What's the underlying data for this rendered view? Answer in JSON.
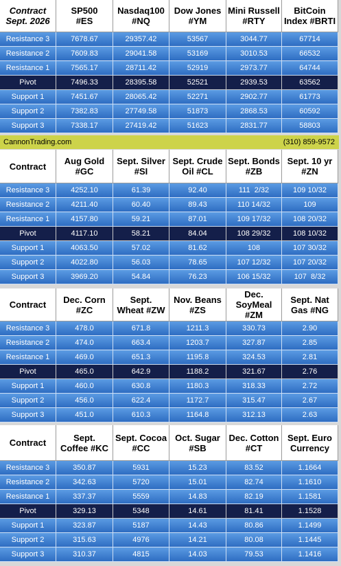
{
  "tables": [
    {
      "header": [
        [
          "Contract",
          "Sept. 2026"
        ],
        [
          "SP500",
          "#ES"
        ],
        [
          "Nasdaq100",
          "#NQ"
        ],
        [
          "Dow Jones",
          "#YM"
        ],
        [
          "Mini Russell",
          "#RTY"
        ],
        [
          "BitCoin",
          "Index #BRTI"
        ]
      ],
      "rows": [
        [
          "Resistance 3",
          "7678.67",
          "29357.42",
          "53567",
          "3044.77",
          "67714"
        ],
        [
          "Resistance 2",
          "7609.83",
          "29041.58",
          "53169",
          "3010.53",
          "66532"
        ],
        [
          "Resistance 1",
          "7565.17",
          "28711.42",
          "52919",
          "2973.77",
          "64744"
        ],
        [
          "Pivot",
          "7496.33",
          "28395.58",
          "52521",
          "2939.53",
          "63562"
        ],
        [
          "Support 1",
          "7451.67",
          "28065.42",
          "52271",
          "2902.77",
          "61773"
        ],
        [
          "Support 2",
          "7382.83",
          "27749.58",
          "51873",
          "2868.53",
          "60592"
        ],
        [
          "Support 3",
          "7338.17",
          "27419.42",
          "51623",
          "2831.77",
          "58803"
        ]
      ]
    },
    {
      "header": [
        [
          "Contract"
        ],
        [
          "Aug Gold",
          "#GC"
        ],
        [
          "Sept. Silver",
          "#SI"
        ],
        [
          "Sept. Crude",
          "Oil #CL"
        ],
        [
          "Sept. Bonds",
          "#ZB"
        ],
        [
          "Sept. 10 yr",
          "#ZN"
        ]
      ],
      "rows": [
        [
          "Resistance 3",
          "4252.10",
          "61.39",
          "92.40",
          "111  2/32",
          "109 10/32"
        ],
        [
          "Resistance 2",
          "4211.40",
          "60.40",
          "89.43",
          "110 14/32",
          "109"
        ],
        [
          "Resistance 1",
          "4157.80",
          "59.21",
          "87.01",
          "109 17/32",
          "108 20/32"
        ],
        [
          "Pivot",
          "4117.10",
          "58.21",
          "84.04",
          "108 29/32",
          "108 10/32"
        ],
        [
          "Support 1",
          "4063.50",
          "57.02",
          "81.62",
          "108",
          "107 30/32"
        ],
        [
          "Support 2",
          "4022.80",
          "56.03",
          "78.65",
          "107 12/32",
          "107 20/32"
        ],
        [
          "Support 3",
          "3969.20",
          "54.84",
          "76.23",
          "106 15/32",
          "107  8/32"
        ]
      ]
    },
    {
      "header": [
        [
          "Contract"
        ],
        [
          "Dec. Corn",
          "#ZC"
        ],
        [
          "Sept.",
          "Wheat #ZW"
        ],
        [
          "Nov. Beans",
          "#ZS"
        ],
        [
          "Dec.",
          "SoyMeal",
          "#ZM"
        ],
        [
          "Sept. Nat",
          "Gas #NG"
        ]
      ],
      "rows": [
        [
          "Resistance 3",
          "478.0",
          "671.8",
          "1211.3",
          "330.73",
          "2.90"
        ],
        [
          "Resistance 2",
          "474.0",
          "663.4",
          "1203.7",
          "327.87",
          "2.85"
        ],
        [
          "Resistance 1",
          "469.0",
          "651.3",
          "1195.8",
          "324.53",
          "2.81"
        ],
        [
          "Pivot",
          "465.0",
          "642.9",
          "1188.2",
          "321.67",
          "2.76"
        ],
        [
          "Support 1",
          "460.0",
          "630.8",
          "1180.3",
          "318.33",
          "2.72"
        ],
        [
          "Support 2",
          "456.0",
          "622.4",
          "1172.7",
          "315.47",
          "2.67"
        ],
        [
          "Support 3",
          "451.0",
          "610.3",
          "1164.8",
          "312.13",
          "2.63"
        ]
      ]
    },
    {
      "header": [
        [
          "Contract"
        ],
        [
          "Sept.",
          "Coffee #KC"
        ],
        [
          "Sept. Cocoa",
          "#CC"
        ],
        [
          "Oct. Sugar",
          "#SB"
        ],
        [
          "Dec. Cotton",
          "#CT"
        ],
        [
          "Sept. Euro",
          "Currency"
        ]
      ],
      "rows": [
        [
          "Resistance 3",
          "350.87",
          "5931",
          "15.23",
          "83.52",
          "1.1664"
        ],
        [
          "Resistance 2",
          "342.63",
          "5720",
          "15.01",
          "82.74",
          "1.1610"
        ],
        [
          "Resistance 1",
          "337.37",
          "5559",
          "14.83",
          "82.19",
          "1.1581"
        ],
        [
          "Pivot",
          "329.13",
          "5348",
          "14.61",
          "81.41",
          "1.1528"
        ],
        [
          "Support 1",
          "323.87",
          "5187",
          "14.43",
          "80.86",
          "1.1499"
        ],
        [
          "Support 2",
          "315.63",
          "4976",
          "14.21",
          "80.08",
          "1.1445"
        ],
        [
          "Support 3",
          "310.37",
          "4815",
          "14.03",
          "79.53",
          "1.1416"
        ]
      ]
    }
  ],
  "banner": {
    "left": "CannonTrading.com",
    "right": "(310) 859-9572"
  }
}
